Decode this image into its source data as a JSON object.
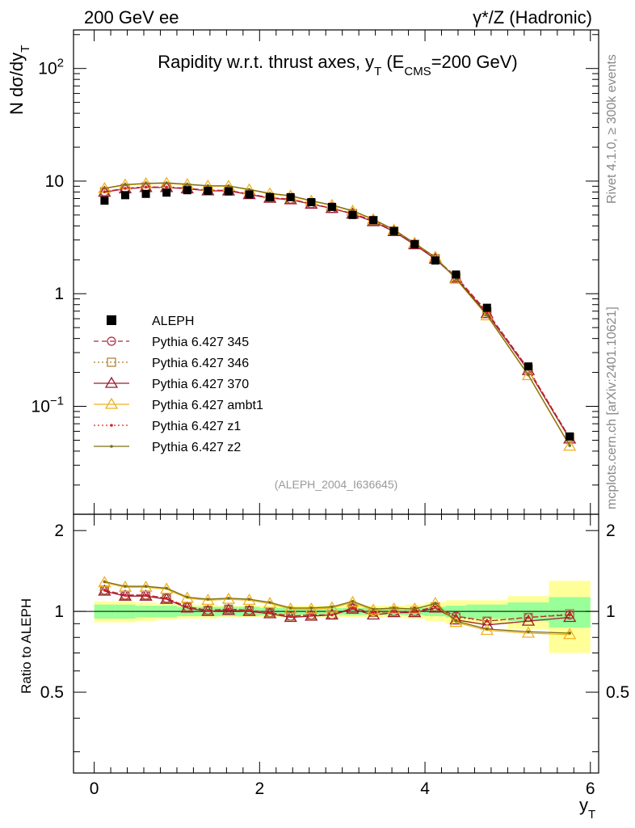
{
  "header": {
    "left": "200 GeV ee",
    "right": "γ*/Z (Hadronic)"
  },
  "side": {
    "rivet": "Rivet 4.1.0, ≥ 300k events",
    "mcplots": "mcplots.cern.ch [arXiv:2401.10621]"
  },
  "chart_data": {
    "type": "line",
    "title": "Rapidity w.r.t. thrust axes, y_T (E_CMS=200 GeV)",
    "title_parts": {
      "main": "Rapidity w.r.t. thrust axes, y",
      "sub_t": "T",
      "mid": " (E",
      "sub_cms": "CMS",
      "end": "=200 GeV)"
    },
    "ylabel": "N  dσ/dy_T",
    "ylabel_parts": {
      "main": "N  dσ/dy",
      "sub": "T"
    },
    "xlabel": "y_T",
    "xlabel_parts": {
      "main": "y",
      "sub": "T"
    },
    "analysis_id": "(ALEPH_2004_I636645)",
    "xlim": [
      -0.25,
      6.1
    ],
    "ylim_log": [
      0.011,
      220
    ],
    "ratio_ylabel": "Ratio to ALEPH",
    "ratio_ylim": [
      0.25,
      2.3
    ],
    "x_ticks": [
      0,
      2,
      4,
      6
    ],
    "x_tick_labels": [
      "0",
      "2",
      "4",
      "6"
    ],
    "y_ticks": [
      {
        "v": 0.1,
        "base": "10",
        "exp": "−1"
      },
      {
        "v": 1,
        "label": "1"
      },
      {
        "v": 10,
        "label": "10"
      },
      {
        "v": 100,
        "base": "10",
        "exp": "2"
      }
    ],
    "ratio_ticks": [
      0.5,
      1,
      2
    ],
    "ratio_tick_labels": [
      "0.5",
      "1",
      "2"
    ],
    "x": [
      0.125,
      0.375,
      0.625,
      0.875,
      1.125,
      1.375,
      1.625,
      1.875,
      2.125,
      2.375,
      2.625,
      2.875,
      3.125,
      3.375,
      3.625,
      3.875,
      4.125,
      4.375,
      4.75,
      5.25,
      5.75
    ],
    "bin_edges": [
      0,
      0.25,
      0.5,
      0.75,
      1.0,
      1.25,
      1.5,
      1.75,
      2.0,
      2.25,
      2.5,
      2.75,
      3.0,
      3.25,
      3.5,
      3.75,
      4.0,
      4.25,
      4.5,
      5.0,
      5.5,
      6.0
    ],
    "data": {
      "name": "ALEPH",
      "values": [
        6.7,
        7.5,
        7.7,
        7.9,
        8.3,
        8.2,
        8.1,
        7.6,
        7.2,
        7.2,
        6.5,
        5.9,
        5.0,
        4.5,
        3.6,
        2.75,
        1.97,
        1.48,
        0.75,
        0.226,
        0.054
      ]
    },
    "series": [
      {
        "name": "Pythia 6.427 345",
        "color": "#b22440",
        "dash": "6,4",
        "marker": "circle",
        "ratio": [
          1.2,
          1.15,
          1.15,
          1.12,
          1.04,
          1.01,
          1.02,
          1.01,
          0.99,
          0.96,
          0.97,
          0.97,
          1.03,
          0.99,
          1.0,
          1.0,
          1.04,
          0.96,
          0.92,
          0.95,
          0.97
        ]
      },
      {
        "name": "Pythia 6.427 346",
        "color": "#a87a30",
        "dash": "2,3",
        "marker": "square",
        "ratio": [
          1.2,
          1.15,
          1.15,
          1.12,
          1.04,
          1.01,
          1.02,
          1.01,
          0.99,
          0.96,
          0.97,
          0.97,
          1.03,
          0.99,
          1.0,
          1.0,
          1.04,
          0.95,
          0.92,
          0.95,
          0.98
        ]
      },
      {
        "name": "Pythia 6.427 370",
        "color": "#9a1a30",
        "dash": "",
        "marker": "triangle",
        "ratio": [
          1.19,
          1.14,
          1.14,
          1.11,
          1.03,
          1.0,
          1.01,
          1.0,
          0.98,
          0.95,
          0.96,
          0.97,
          1.02,
          0.97,
          0.99,
          0.99,
          1.03,
          0.93,
          0.89,
          0.92,
          0.95
        ]
      },
      {
        "name": "Pythia 6.427 ambt1",
        "color": "#f0b020",
        "dash": "",
        "marker": "triangle",
        "ratio": [
          1.28,
          1.23,
          1.23,
          1.21,
          1.12,
          1.1,
          1.11,
          1.1,
          1.07,
          1.02,
          1.02,
          1.03,
          1.08,
          1.01,
          1.02,
          1.02,
          1.07,
          0.91,
          0.85,
          0.83,
          0.82
        ]
      },
      {
        "name": "Pythia 6.427 z1",
        "color": "#e02020",
        "dash": "2,3",
        "marker": "dot",
        "ratio": [
          1.2,
          1.15,
          1.15,
          1.12,
          1.04,
          1.01,
          1.02,
          1.01,
          0.99,
          0.96,
          0.97,
          0.97,
          1.03,
          0.99,
          1.0,
          1.0,
          1.04,
          0.96,
          0.92,
          0.95,
          0.97
        ]
      },
      {
        "name": "Pythia 6.427 z2",
        "color": "#7a7010",
        "dash": "",
        "marker": "dot",
        "ratio": [
          1.29,
          1.24,
          1.24,
          1.22,
          1.13,
          1.11,
          1.12,
          1.11,
          1.08,
          1.03,
          1.03,
          1.04,
          1.09,
          1.02,
          1.03,
          1.02,
          1.07,
          0.92,
          0.86,
          0.84,
          0.83
        ]
      }
    ],
    "bands": {
      "stat": [
        0.06,
        0.06,
        0.05,
        0.05,
        0.04,
        0.04,
        0.04,
        0.04,
        0.03,
        0.03,
        0.03,
        0.03,
        0.03,
        0.03,
        0.03,
        0.03,
        0.04,
        0.05,
        0.06,
        0.08,
        0.13
      ],
      "total": [
        0.09,
        0.09,
        0.08,
        0.07,
        0.06,
        0.06,
        0.05,
        0.05,
        0.05,
        0.05,
        0.05,
        0.05,
        0.05,
        0.05,
        0.05,
        0.06,
        0.08,
        0.1,
        0.1,
        0.14,
        0.3
      ]
    }
  }
}
